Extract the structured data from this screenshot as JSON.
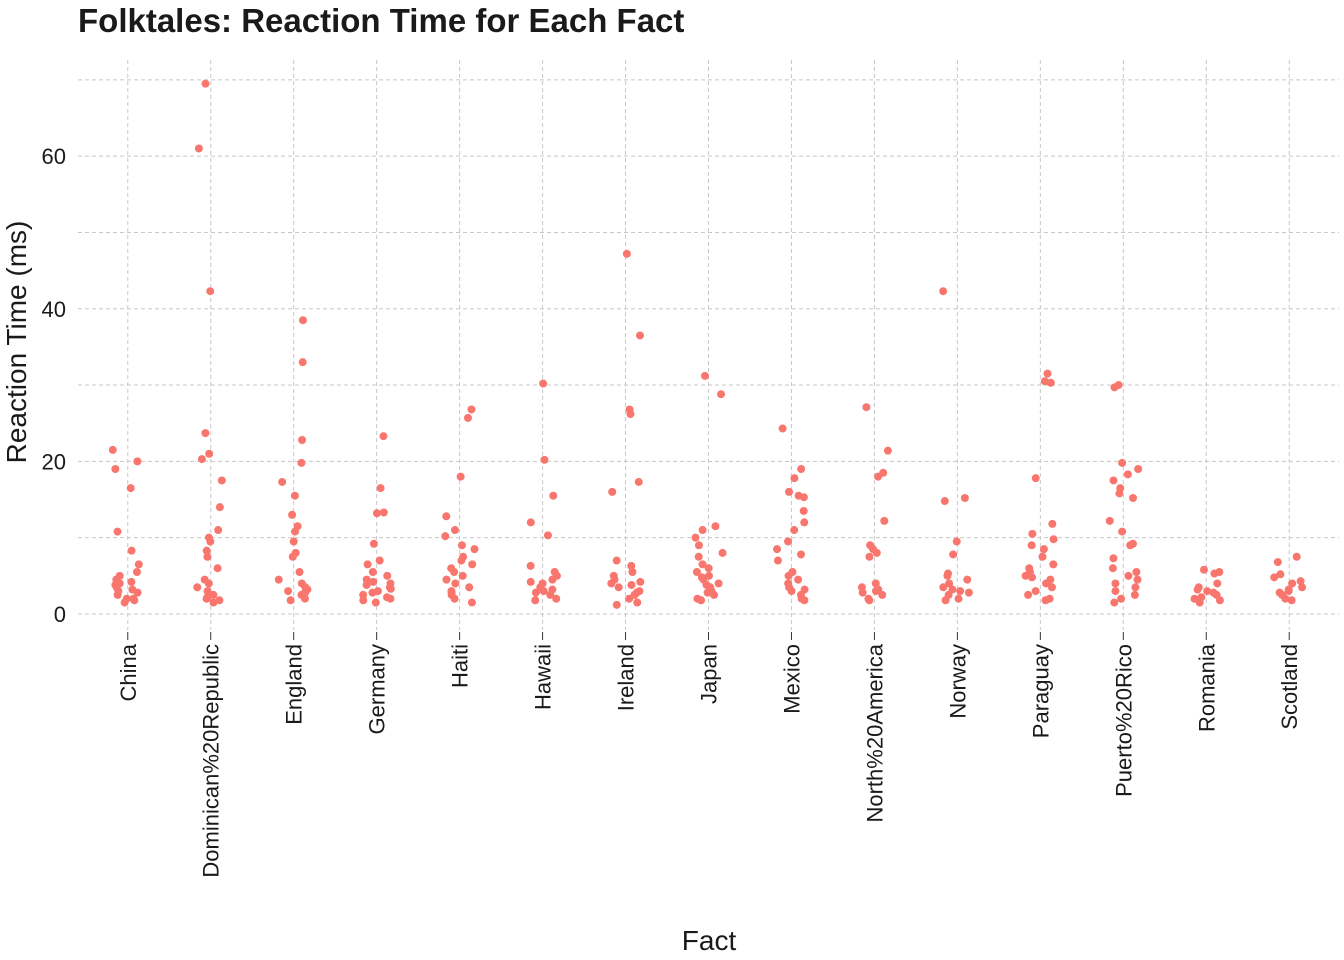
{
  "chart_data": {
    "type": "strip",
    "title": "Folktales: Reaction Time for Each Fact",
    "x_label": "Fact",
    "y_label": "Reaction Time (ms)",
    "color": "#f8766d",
    "grid": true,
    "ylim": [
      -2.1,
      72.6
    ],
    "yticks": [
      0,
      20,
      40,
      60
    ],
    "minor_yticks": [
      10,
      30,
      50,
      70
    ],
    "categories": [
      "China",
      "Dominican%20Republic",
      "England",
      "Germany",
      "Haiti",
      "Hawaii",
      "Ireland",
      "Japan",
      "Mexico",
      "North%20America",
      "Norway",
      "Paraguay",
      "Puerto%20Rico",
      "Romania",
      "Scotland"
    ],
    "values": [
      [
        21.5,
        20,
        19,
        16.5,
        10.8,
        8.3,
        6.5,
        5,
        4.5,
        4,
        3.5,
        3,
        2.5,
        2,
        2,
        1.8,
        3.2,
        4.2,
        2.8,
        1.5,
        5.5,
        3.8
      ],
      [
        69.5,
        61,
        42.3,
        23.7,
        21,
        20.3,
        17.5,
        14,
        11,
        10,
        9.5,
        8.3,
        7.5,
        6,
        4,
        3,
        2.5,
        2,
        1.5,
        3.5,
        2.2,
        1.8,
        4.5
      ],
      [
        38.5,
        33,
        22.8,
        19.8,
        17.3,
        15.5,
        13,
        11.5,
        10.8,
        9.5,
        8,
        7.5,
        5.5,
        4.5,
        4,
        3.5,
        3,
        2.5,
        2,
        1.8,
        3.2,
        2.8
      ],
      [
        23.3,
        16.5,
        13.3,
        13.2,
        9.2,
        7,
        6.5,
        5.5,
        5,
        4.5,
        4,
        3.5,
        3,
        2.5,
        2,
        1.5,
        2.8,
        3.8,
        4.2,
        2.2,
        1.8,
        3.3
      ],
      [
        26.8,
        25.7,
        18,
        12.8,
        11,
        10.2,
        9,
        8.5,
        7.5,
        7,
        6.5,
        5.5,
        5,
        4,
        3.5,
        3,
        2.5,
        2,
        1.5,
        6,
        4.5,
        2.8
      ],
      [
        30.2,
        20.2,
        15.5,
        12,
        10.3,
        6.3,
        5.5,
        5,
        4.5,
        4,
        3.5,
        3,
        2.5,
        2,
        1.8,
        3.2,
        2.8,
        4.2
      ],
      [
        47.2,
        36.5,
        26.8,
        26.2,
        17.3,
        16,
        7,
        6.3,
        5.5,
        5,
        4.5,
        4,
        3.5,
        3,
        2.5,
        2,
        1.5,
        1.2,
        3.8,
        2.8,
        4.2
      ],
      [
        31.2,
        28.8,
        11.5,
        11,
        10,
        9,
        8,
        7.5,
        6.5,
        6,
        5.5,
        5,
        4.5,
        4,
        3.5,
        3,
        2.5,
        2,
        1.8,
        4.8,
        3.8,
        2.8
      ],
      [
        24.3,
        19,
        17.8,
        16,
        15.5,
        15.3,
        13.5,
        12,
        11,
        9.5,
        8.5,
        7.8,
        7,
        5.5,
        5,
        4.5,
        4,
        3.5,
        3,
        2.5,
        2,
        1.8,
        3.2
      ],
      [
        27.1,
        21.4,
        18.5,
        18,
        12.2,
        9,
        8.5,
        8,
        7.5,
        4,
        3.5,
        3,
        2.5,
        2,
        1.8,
        3.2,
        2.8
      ],
      [
        42.3,
        15.2,
        14.8,
        9.5,
        7.8,
        5.3,
        5,
        4.5,
        4,
        3.5,
        3,
        2.5,
        2,
        1.8,
        3.2,
        2.8
      ],
      [
        31.5,
        30.5,
        30.3,
        17.8,
        11.8,
        10.5,
        9.8,
        9,
        8.5,
        7.5,
        6.5,
        6,
        5.5,
        5,
        4.5,
        4,
        3.5,
        3,
        2.5,
        2,
        1.8,
        4.8
      ],
      [
        30,
        29.7,
        19.8,
        19,
        18.3,
        17.5,
        16.5,
        15.8,
        15.2,
        12.2,
        10.8,
        9.2,
        9,
        7.3,
        6,
        5.5,
        5,
        4.5,
        4,
        3.5,
        3,
        2.5,
        2,
        1.5
      ],
      [
        5.8,
        5.5,
        5.3,
        4,
        3.5,
        3,
        2.5,
        2.2,
        2,
        1.8,
        1.5,
        3.2,
        2.8
      ],
      [
        7.5,
        6.8,
        5.2,
        4.8,
        4.3,
        4,
        3.5,
        3,
        2.5,
        2,
        1.8,
        3.2,
        2.8
      ]
    ]
  }
}
